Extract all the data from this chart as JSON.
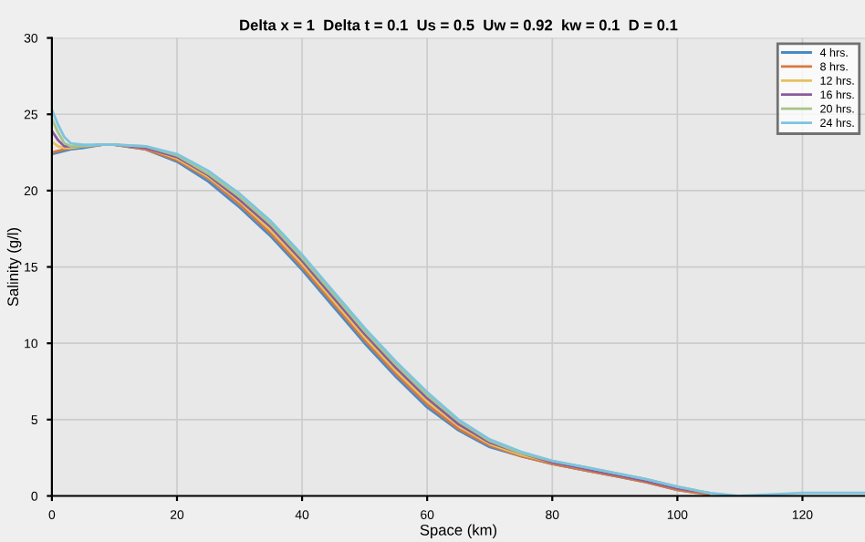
{
  "chart_data": {
    "type": "line",
    "title": "Delta x = 1  Delta t = 0.1  Us = 0.5  Uw = 0.92  kw = 0.1  D = 0.1",
    "xlabel": "Space (km)",
    "ylabel": "Salinity (g/l)",
    "x": [
      0,
      1,
      2,
      3,
      5,
      8,
      10,
      15,
      20,
      25,
      30,
      35,
      40,
      45,
      50,
      55,
      60,
      65,
      70,
      75,
      80,
      85,
      90,
      95,
      100,
      105,
      110,
      115,
      120,
      125,
      130
    ],
    "series": [
      {
        "name": "4 hrs.",
        "color": "#4a8ac4",
        "values": [
          22.4,
          22.5,
          22.6,
          22.7,
          22.8,
          23.0,
          23.0,
          22.7,
          21.9,
          20.6,
          18.9,
          17.0,
          14.8,
          12.4,
          10.0,
          7.8,
          5.8,
          4.3,
          3.2,
          2.6,
          2.1,
          1.7,
          1.3,
          0.9,
          0.4,
          0.1,
          null,
          null,
          null,
          null,
          null
        ]
      },
      {
        "name": "8 hrs.",
        "color": "#d9773f",
        "values": [
          22.5,
          22.6,
          22.7,
          22.8,
          22.9,
          23.0,
          23.0,
          22.7,
          22.0,
          20.8,
          19.1,
          17.2,
          15.0,
          12.6,
          10.2,
          8.0,
          6.0,
          4.4,
          3.3,
          2.6,
          2.1,
          1.7,
          1.3,
          0.9,
          0.4,
          0.1,
          null,
          null,
          null,
          null,
          null
        ]
      },
      {
        "name": "12 hrs.",
        "color": "#e6c060",
        "values": [
          23.2,
          22.9,
          22.8,
          22.8,
          22.9,
          23.0,
          23.0,
          22.8,
          22.1,
          20.9,
          19.3,
          17.4,
          15.2,
          12.8,
          10.4,
          8.2,
          6.2,
          4.6,
          3.4,
          2.7,
          2.2,
          1.8,
          null,
          null,
          null,
          null,
          null,
          null,
          null,
          null,
          null
        ]
      },
      {
        "name": "16 hrs.",
        "color": "#8a5a9e",
        "values": [
          23.9,
          23.3,
          22.9,
          22.9,
          22.9,
          23.0,
          23.0,
          22.8,
          22.2,
          21.0,
          19.4,
          17.6,
          15.4,
          13.0,
          10.6,
          8.4,
          6.4,
          4.7,
          3.5,
          2.8,
          2.2,
          1.8,
          1.4,
          1.0,
          0.5,
          0.2,
          null,
          null,
          null,
          null,
          null
        ]
      },
      {
        "name": "20 hrs.",
        "color": "#a6c48a",
        "values": [
          24.7,
          23.8,
          23.1,
          22.9,
          22.9,
          23.0,
          23.0,
          22.9,
          22.3,
          21.1,
          19.6,
          17.8,
          15.6,
          13.2,
          10.8,
          8.6,
          6.6,
          4.9,
          3.6,
          2.8,
          2.3,
          1.9,
          1.5,
          1.1,
          0.6,
          0.2,
          null,
          null,
          null,
          null,
          null
        ]
      },
      {
        "name": "24 hrs.",
        "color": "#7cc4e0",
        "values": [
          25.3,
          24.3,
          23.5,
          23.1,
          23.0,
          23.0,
          23.0,
          22.9,
          22.4,
          21.3,
          19.8,
          18.0,
          15.8,
          13.4,
          11.0,
          8.8,
          6.8,
          5.0,
          3.7,
          2.9,
          2.3,
          1.9,
          1.5,
          1.1,
          0.6,
          0.2,
          0.0,
          0.1,
          0.2,
          0.2,
          0.2
        ]
      }
    ],
    "xlim": [
      0,
      130
    ],
    "ylim": [
      0,
      30
    ],
    "xticks": [
      0,
      20,
      40,
      60,
      80,
      100,
      120
    ],
    "yticks": [
      0,
      5,
      10,
      15,
      20,
      25,
      30
    ],
    "grid": true,
    "legend": "top right"
  }
}
